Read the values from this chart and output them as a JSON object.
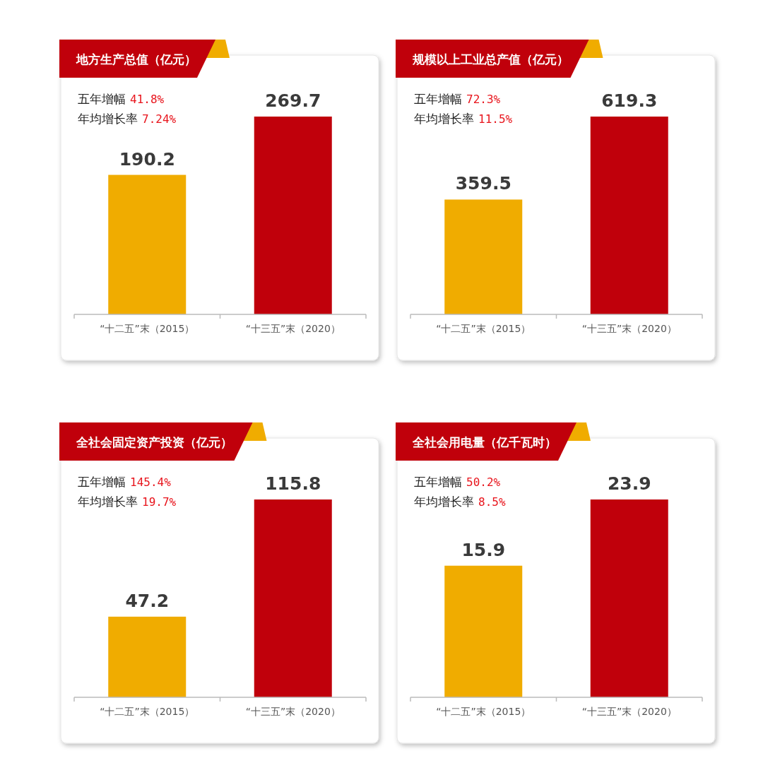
{
  "chart_data": [
    {
      "type": "bar",
      "title": "地方生产总值（亿元）",
      "categories": [
        "“十二五”末（2015）",
        "“十三五”末（2020）"
      ],
      "values": [
        190.2,
        269.7
      ],
      "colors": [
        "#f0ac00",
        "#c0000b"
      ],
      "data_labels": true,
      "annotations": [
        "五年增幅 41.8%",
        "年均增长率 7.24%"
      ]
    },
    {
      "type": "bar",
      "title": "规模以上工业总产值（亿元）",
      "categories": [
        "“十二五”末（2015）",
        "“十三五”末（2020）"
      ],
      "values": [
        359.5,
        619.3
      ],
      "colors": [
        "#f0ac00",
        "#c0000b"
      ],
      "data_labels": true,
      "annotations": [
        "五年增幅 72.3%",
        "年均增长率 11.5%"
      ]
    },
    {
      "type": "bar",
      "title": "全社会固定资产投资（亿元）",
      "categories": [
        "“十二五”末（2015）",
        "“十三五”末（2020）"
      ],
      "values": [
        47.2,
        115.8
      ],
      "colors": [
        "#f0ac00",
        "#c0000b"
      ],
      "data_labels": true,
      "annotations": [
        "五年增幅 145.4%",
        "年均增长率 19.7%"
      ]
    },
    {
      "type": "bar",
      "title": "全社会用电量（亿千瓦时）",
      "categories": [
        "“十二五”末（2015）",
        "“十三五”末（2020）"
      ],
      "values": [
        15.9,
        23.9
      ],
      "colors": [
        "#f0ac00",
        "#c0000b"
      ],
      "data_labels": true,
      "annotations": [
        "五年增幅 50.2%",
        "年均增长率 8.5%"
      ]
    }
  ]
}
